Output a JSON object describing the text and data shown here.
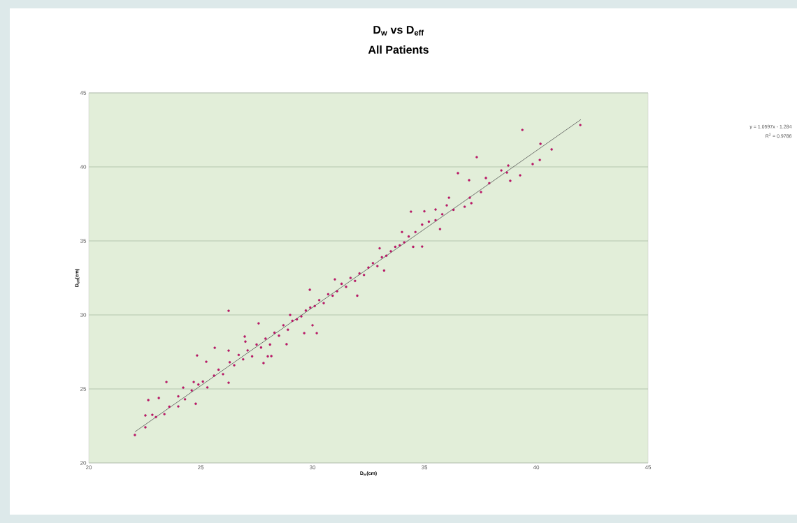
{
  "chart_data": {
    "type": "scatter",
    "title": "D$_{w}$ vs D$_{eff}$",
    "subtitle": "All Patients",
    "xlabel": "D$_{w}$(cm)",
    "ylabel": "D$_{eff}$(cm)",
    "xlim": [
      20,
      45
    ],
    "ylim": [
      20,
      45
    ],
    "xticks": [
      20,
      25,
      30,
      35,
      40,
      45
    ],
    "yticks": [
      20,
      25,
      30,
      35,
      40,
      45
    ],
    "grid": "y",
    "marker": "circle",
    "annotations": [
      "y = 1.0597x - 1.284",
      "R$^{2}$ = 0.9786"
    ],
    "series": [
      {
        "color": "#c0146a",
        "x": [
          22.06,
          22.53,
          22.84,
          22.53,
          22.66,
          23.13,
          23.38,
          23.47,
          24.0,
          24.22,
          24.78,
          24.69,
          24.84,
          25.25,
          25.63,
          26.25,
          26.25,
          26.25,
          26.97,
          27.59,
          28.16,
          27.81,
          28.84,
          29.63,
          29.88,
          30.19,
          23.0,
          23.6,
          24.0,
          24.3,
          24.6,
          24.9,
          25.1,
          25.3,
          25.6,
          25.8,
          26.0,
          26.3,
          26.5,
          26.7,
          26.9,
          27.1,
          27.3,
          27.5,
          27.7,
          27.9,
          28.1,
          28.3,
          28.5,
          28.7,
          28.9,
          29.1,
          29.3,
          29.5,
          29.7,
          29.9,
          30.1,
          30.3,
          30.5,
          30.7,
          30.9,
          31.1,
          31.3,
          31.5,
          31.7,
          31.9,
          32.1,
          32.3,
          32.5,
          32.7,
          32.9,
          33.1,
          33.3,
          33.5,
          33.7,
          33.9,
          34.1,
          34.3,
          34.6,
          34.9,
          35.2,
          35.5,
          35.8,
          36.0,
          36.3,
          27.0,
          28.0,
          29.0,
          30.0,
          31.0,
          32.0,
          33.0,
          33.2,
          34.0,
          34.5,
          35.0,
          35.7,
          34.4,
          34.9,
          35.5,
          36.1,
          36.8,
          37.1,
          37.03,
          37.53,
          36.5,
          37.0,
          37.34,
          37.75,
          37.9,
          38.44,
          38.75,
          38.69,
          38.84,
          39.28,
          39.84,
          40.16,
          39.38,
          40.19,
          40.69,
          41.97
        ],
        "values": [
          21.89,
          23.21,
          23.25,
          22.41,
          24.25,
          24.39,
          23.3,
          25.47,
          23.82,
          25.09,
          24.0,
          25.47,
          27.26,
          26.84,
          27.78,
          27.59,
          25.42,
          30.28,
          28.54,
          29.43,
          27.22,
          26.75,
          28.02,
          28.77,
          31.7,
          28.77,
          23.1,
          23.8,
          24.5,
          24.3,
          24.9,
          25.3,
          25.5,
          25.1,
          25.9,
          26.3,
          26.0,
          26.8,
          26.6,
          27.3,
          27.0,
          27.6,
          27.2,
          28.0,
          27.8,
          28.4,
          28.0,
          28.8,
          28.6,
          29.3,
          29.0,
          29.6,
          29.7,
          29.9,
          30.3,
          30.5,
          30.6,
          31.0,
          30.8,
          31.4,
          31.3,
          31.6,
          32.1,
          31.9,
          32.5,
          32.3,
          32.8,
          32.7,
          33.2,
          33.5,
          33.3,
          33.9,
          34.0,
          34.3,
          34.6,
          34.7,
          34.9,
          35.3,
          35.6,
          36.1,
          36.3,
          36.4,
          36.8,
          37.4,
          37.1,
          28.2,
          27.2,
          30.0,
          29.3,
          32.4,
          31.3,
          34.5,
          33.0,
          35.6,
          34.6,
          37.0,
          35.8,
          36.98,
          34.62,
          37.12,
          37.92,
          37.31,
          37.55,
          37.92,
          38.3,
          39.58,
          39.1,
          40.66,
          39.25,
          38.9,
          39.76,
          40.09,
          39.62,
          39.06,
          39.43,
          40.19,
          40.47,
          42.5,
          41.56,
          41.18,
          42.83
        ]
      },
      {
        "type": "line",
        "color": "#555555",
        "marker": "none",
        "x": [
          22.06,
          42.0
        ],
        "values": [
          22.1,
          43.2
        ]
      }
    ]
  }
}
